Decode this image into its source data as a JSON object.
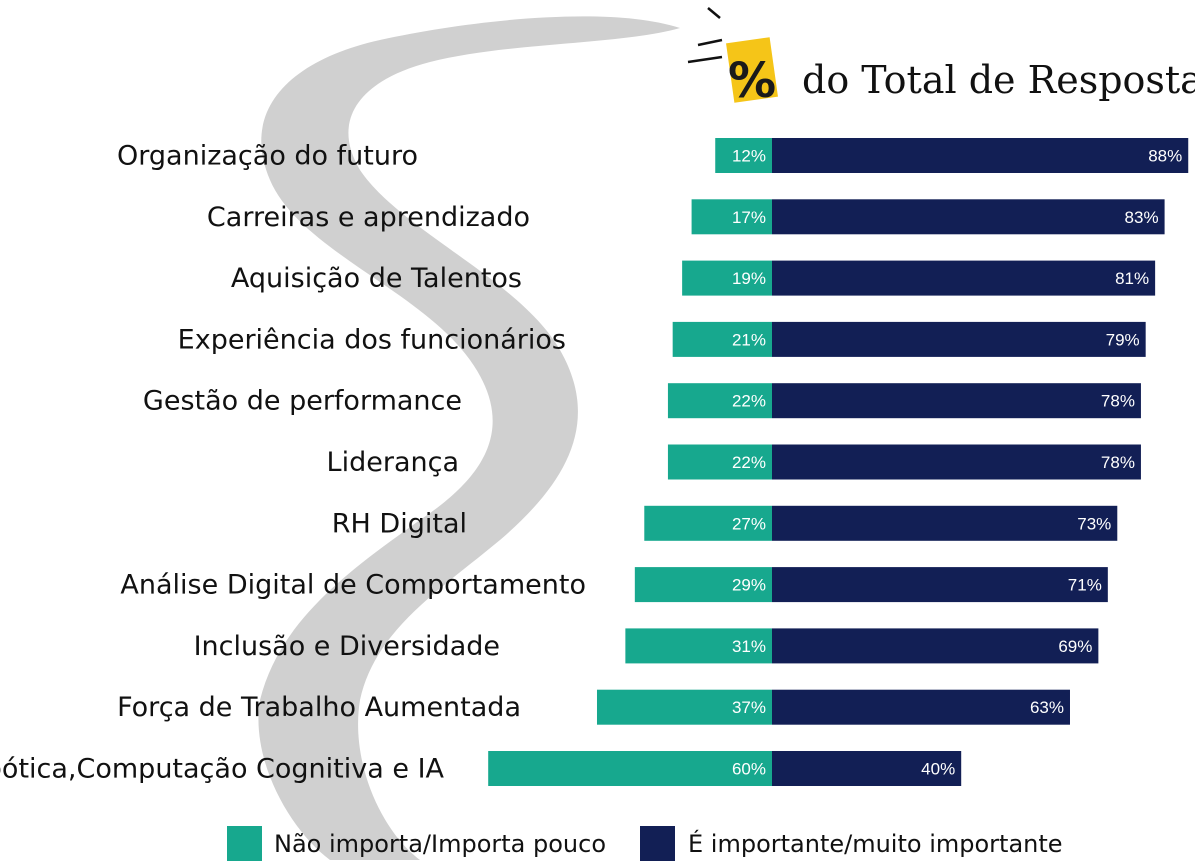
{
  "title": {
    "symbol": "%",
    "text": "do Total de Respostas"
  },
  "colors": {
    "low": "#17a88e",
    "high": "#121f55",
    "title_highlight": "#f5c518",
    "background_swoosh": "#d0d0d0"
  },
  "legend": {
    "low_label": "Não importa/Importa pouco",
    "high_label": "É importante/muito importante"
  },
  "chart_data": {
    "type": "bar",
    "orientation": "horizontal-diverging-stacked",
    "title": "% do Total de Respostas",
    "categories": [
      "Organização do futuro",
      "Carreiras e aprendizado",
      "Aquisição de Talentos",
      "Experiência dos funcionários",
      "Gestão de performance",
      "Liderança",
      "RH Digital",
      "Análise Digital de Comportamento",
      "Inclusão e Diversidade",
      "Força de Trabalho Aumentada",
      "Robótica,Computação Cognitiva e IA"
    ],
    "series": [
      {
        "name": "Não importa/Importa pouco",
        "values": [
          12,
          17,
          19,
          21,
          22,
          22,
          27,
          29,
          31,
          37,
          60
        ]
      },
      {
        "name": "É importante/muito importante",
        "values": [
          88,
          83,
          81,
          79,
          78,
          78,
          73,
          71,
          69,
          63,
          40
        ]
      }
    ],
    "value_labels": {
      "low": [
        "12%",
        "17%",
        "19%",
        "21%",
        "22%",
        "22%",
        "27%",
        "29%",
        "31%",
        "37%",
        "60%"
      ],
      "high": [
        "88%",
        "83%",
        "81%",
        "79%",
        "78%",
        "78%",
        "73%",
        "71%",
        "69%",
        "63%",
        "40%"
      ]
    },
    "legend_position": "bottom",
    "grid": false
  }
}
